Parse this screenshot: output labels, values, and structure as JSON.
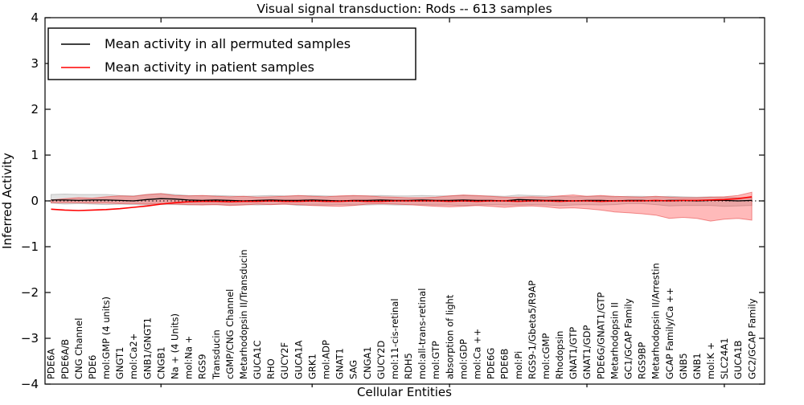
{
  "chart_data": {
    "type": "line",
    "title": "Visual signal transduction: Rods -- 613 samples",
    "xlabel": "Cellular Entities",
    "ylabel": "Inferred Activity",
    "ylim": [
      -4,
      4
    ],
    "grid": false,
    "legend_position": "upper left",
    "yticks": [
      {
        "value": 4,
        "label": "4"
      },
      {
        "value": 3,
        "label": "3"
      },
      {
        "value": 2,
        "label": "2"
      },
      {
        "value": 1,
        "label": "1"
      },
      {
        "value": 0,
        "label": "0"
      },
      {
        "value": -1,
        "label": "−1"
      },
      {
        "value": -2,
        "label": "−2"
      },
      {
        "value": -3,
        "label": "−3"
      },
      {
        "value": -4,
        "label": "−4"
      }
    ],
    "xtick_indices": [
      8,
      19,
      29,
      39,
      49
    ],
    "categories": [
      "PDE6A",
      "PDE6A/B",
      "CNG Channel",
      "PDE6",
      "mol:GMP (4 units)",
      "GNGT1",
      "mol:Ca2+",
      "GNB1/GNGT1",
      "CNGB1",
      "Na + (4 Units)",
      "mol:Na +",
      "RGS9",
      "Transducin",
      "cGMP/CNG Channel",
      "Metarhodopsin II/Transducin",
      "GUCA1C",
      "RHO",
      "GUCY2F",
      "GUCA1A",
      "GRK1",
      "mol:ADP",
      "GNAT1",
      "SAG",
      "CNGA1",
      "GUCY2D",
      "mol:11-cis-retinal",
      "RDH5",
      "mol:all-trans-retinal",
      "mol:GTP",
      "absorption of light",
      "mol:GDP",
      "mol:Ca ++",
      "PDE6G",
      "PDE6B",
      "mol:Pi",
      "RGS9-1/Gbeta5/R9AP",
      "mol:cGMP",
      "Rhodopsin",
      "GNAT1/GTP",
      "GNAT1/GDP",
      "PDE6G/GNAT1/GTP",
      "Metarhodopsin II",
      "GC1/GCAP Family",
      "RGS9BP",
      "Metarhodopsin II/Arrestin",
      "GCAP Family/Ca ++",
      "GNB5",
      "GNB1",
      "mol:K +",
      "SLC24A1",
      "GUCA1B",
      "GC2/GCAP Family"
    ],
    "series": [
      {
        "name": "Mean activity in all permuted samples",
        "color": "#000000",
        "band_fill": "rgba(128,128,128,0.22)",
        "band_stroke": "rgba(120,120,120,0.35)",
        "mean": [
          0.02,
          0.02,
          0.01,
          0.02,
          0.02,
          0.01,
          0.0,
          0.03,
          0.05,
          0.04,
          0.02,
          0.01,
          0.02,
          0.01,
          0.0,
          0.01,
          0.02,
          0.01,
          0.01,
          0.02,
          0.01,
          0.0,
          0.01,
          0.01,
          0.02,
          0.01,
          0.01,
          0.02,
          0.01,
          0.01,
          0.02,
          0.01,
          0.01,
          0.0,
          0.03,
          0.02,
          0.01,
          0.01,
          0.0,
          0.01,
          0.01,
          0.0,
          0.01,
          0.01,
          0.0,
          0.01,
          0.01,
          0.0,
          0.01,
          0.01,
          0.0,
          0.01
        ],
        "band_halfwidth": [
          0.12,
          0.13,
          0.13,
          0.12,
          0.12,
          0.11,
          0.11,
          0.11,
          0.11,
          0.1,
          0.1,
          0.1,
          0.1,
          0.1,
          0.1,
          0.1,
          0.1,
          0.1,
          0.1,
          0.1,
          0.1,
          0.1,
          0.1,
          0.1,
          0.1,
          0.1,
          0.1,
          0.1,
          0.1,
          0.1,
          0.1,
          0.1,
          0.1,
          0.1,
          0.1,
          0.1,
          0.1,
          0.09,
          0.09,
          0.09,
          0.09,
          0.09,
          0.09,
          0.09,
          0.09,
          0.09,
          0.08,
          0.08,
          0.08,
          0.07,
          0.07,
          0.06
        ]
      },
      {
        "name": "Mean activity in patient samples",
        "color": "#ff0000",
        "band_fill": "rgba(255,0,0,0.27)",
        "band_stroke": "rgba(230,60,60,0.55)",
        "mean": [
          -0.18,
          -0.2,
          -0.21,
          -0.2,
          -0.19,
          -0.17,
          -0.14,
          -0.11,
          -0.07,
          -0.04,
          -0.02,
          -0.01,
          -0.01,
          -0.02,
          -0.01,
          -0.01,
          0.0,
          -0.01,
          -0.01,
          0.0,
          -0.01,
          -0.01,
          0.0,
          -0.01,
          -0.01,
          0.0,
          0.0,
          0.0,
          0.0,
          -0.01,
          0.0,
          -0.01,
          0.0,
          0.0,
          -0.01,
          0.0,
          0.0,
          -0.01,
          0.0,
          0.0,
          -0.01,
          0.0,
          0.0,
          0.0,
          0.01,
          0.0,
          0.01,
          0.01,
          0.02,
          0.03,
          0.05,
          0.09
        ],
        "band_upper": [
          0.02,
          0.05,
          0.07,
          0.06,
          0.09,
          0.11,
          0.1,
          0.14,
          0.16,
          0.12,
          0.11,
          0.12,
          0.1,
          0.09,
          0.1,
          0.08,
          0.09,
          0.1,
          0.12,
          0.1,
          0.09,
          0.11,
          0.12,
          0.11,
          0.09,
          0.08,
          0.07,
          0.07,
          0.08,
          0.11,
          0.13,
          0.12,
          0.1,
          0.08,
          0.08,
          0.09,
          0.08,
          0.11,
          0.13,
          0.1,
          0.12,
          0.1,
          0.09,
          0.08,
          0.1,
          0.08,
          0.07,
          0.07,
          0.08,
          0.09,
          0.12,
          0.19
        ],
        "band_lower": [
          -0.42,
          -0.38,
          -0.4,
          -0.44,
          -0.38,
          -0.36,
          -0.38,
          -0.31,
          -0.28,
          -0.26,
          -0.24,
          -0.2,
          -0.17,
          -0.15,
          -0.16,
          -0.13,
          -0.11,
          -0.12,
          -0.14,
          -0.12,
          -0.1,
          -0.12,
          -0.13,
          -0.12,
          -0.1,
          -0.08,
          -0.07,
          -0.06,
          -0.07,
          -0.1,
          -0.12,
          -0.11,
          -0.1,
          -0.08,
          -0.07,
          -0.08,
          -0.07,
          -0.09,
          -0.1,
          -0.08,
          -0.09,
          -0.08,
          -0.07,
          -0.06,
          -0.07,
          -0.06,
          -0.06,
          -0.05,
          -0.05,
          -0.04,
          -0.04,
          -0.04
        ]
      }
    ],
    "reference_line": {
      "value": 0,
      "style": "dotted",
      "color": "#000000"
    },
    "legend": {
      "entries": [
        {
          "label": "Mean activity in all permuted samples",
          "color": "#000000"
        },
        {
          "label": "Mean activity in patient samples",
          "color": "#ff0000"
        }
      ]
    }
  }
}
